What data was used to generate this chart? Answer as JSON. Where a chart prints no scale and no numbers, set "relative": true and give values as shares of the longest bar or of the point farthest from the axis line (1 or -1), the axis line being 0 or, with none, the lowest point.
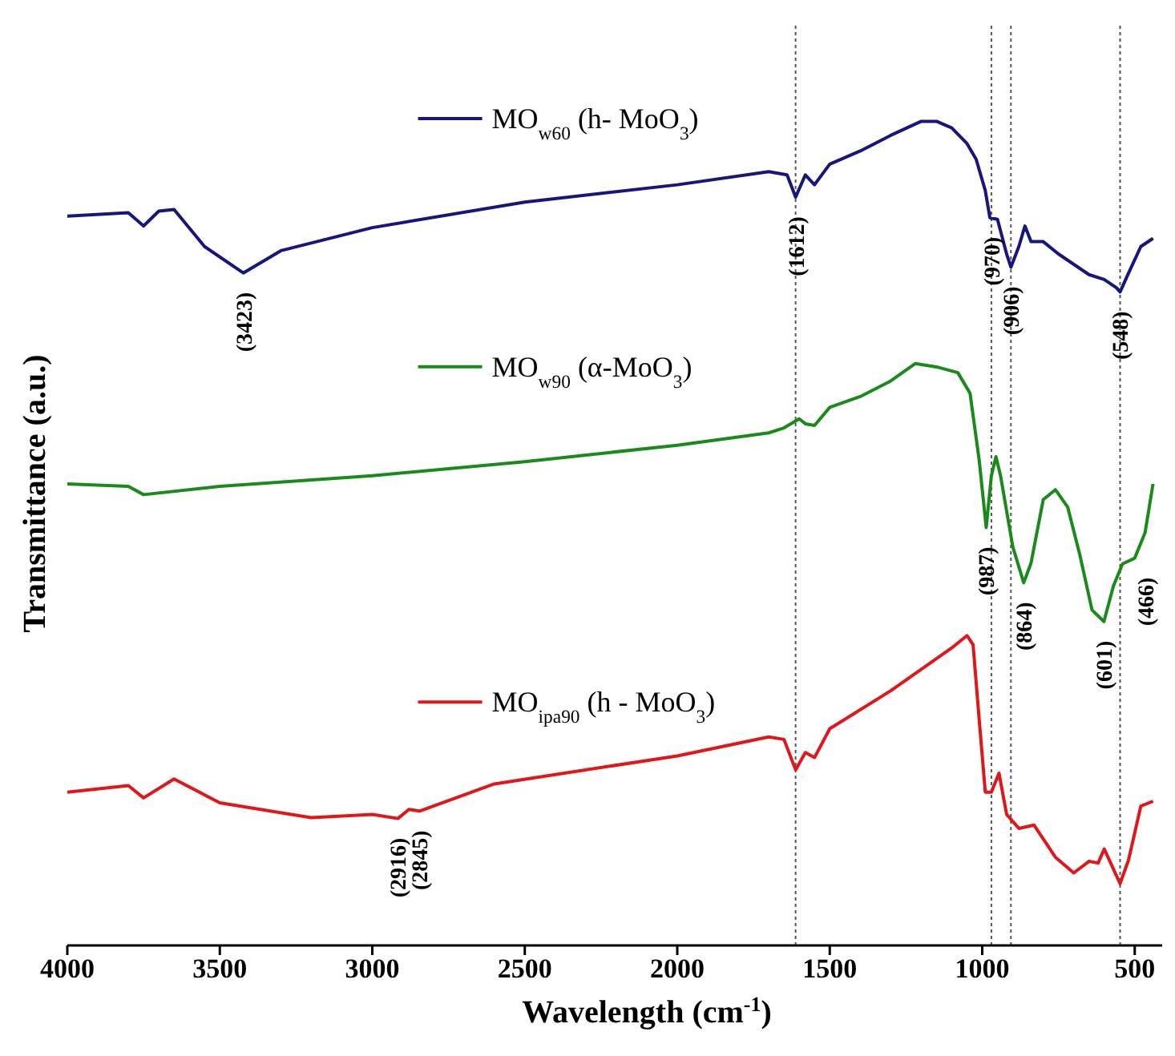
{
  "chart_data": {
    "type": "line",
    "relative": true,
    "xlabel": "Wavelength (cm$^{-1}$)",
    "ylabel": "Transmittance (a.u.)",
    "xlim": [
      4000,
      410
    ],
    "xticks": [
      4000,
      3500,
      3000,
      2500,
      2000,
      1500,
      1000,
      500
    ],
    "legend": "top left",
    "grid": false,
    "line_style": "solid",
    "marker": "none",
    "series": [
      {
        "name": "MO$_{w60}$ (h- MoO$_{3}$)",
        "color": "#16167e",
        "x": [
          4000,
          3800,
          3750,
          3700,
          3650,
          3550,
          3423,
          3300,
          3000,
          2500,
          2000,
          1700,
          1640,
          1612,
          1580,
          1550,
          1500,
          1400,
          1300,
          1200,
          1150,
          1100,
          1050,
          1020,
          990,
          975,
          950,
          920,
          906,
          880,
          860,
          840,
          800,
          750,
          650,
          600,
          560,
          548,
          520,
          480,
          440
        ],
        "values": [
          0.885,
          0.889,
          0.873,
          0.891,
          0.893,
          0.848,
          0.816,
          0.843,
          0.871,
          0.902,
          0.923,
          0.939,
          0.935,
          0.908,
          0.935,
          0.923,
          0.948,
          0.964,
          0.983,
          1.0,
          1.0,
          0.992,
          0.973,
          0.954,
          0.916,
          0.883,
          0.881,
          0.839,
          0.823,
          0.848,
          0.873,
          0.854,
          0.854,
          0.839,
          0.814,
          0.808,
          0.798,
          0.793,
          0.816,
          0.848,
          0.858
        ]
      },
      {
        "name": "MO$_{w90}$ (α-MoO$_{3}$)",
        "color": "#1a8a1a",
        "x": [
          4000,
          3800,
          3750,
          3500,
          3000,
          2500,
          2000,
          1700,
          1650,
          1600,
          1580,
          1550,
          1500,
          1400,
          1300,
          1220,
          1150,
          1080,
          1040,
          1010,
          987,
          970,
          955,
          940,
          900,
          864,
          840,
          800,
          760,
          720,
          680,
          640,
          601,
          570,
          540,
          500,
          466,
          440
        ],
        "values": [
          0.56,
          0.557,
          0.547,
          0.557,
          0.57,
          0.587,
          0.607,
          0.622,
          0.628,
          0.639,
          0.633,
          0.631,
          0.653,
          0.666,
          0.685,
          0.706,
          0.702,
          0.695,
          0.67,
          0.589,
          0.507,
          0.57,
          0.593,
          0.57,
          0.484,
          0.44,
          0.464,
          0.541,
          0.553,
          0.532,
          0.474,
          0.407,
          0.393,
          0.436,
          0.463,
          0.47,
          0.501,
          0.56
        ]
      },
      {
        "name": "MO$_{ipa90}$ (h - MoO$_{3}$)",
        "color": "#e0161b",
        "x": [
          4000,
          3800,
          3750,
          3650,
          3500,
          3200,
          3000,
          2916,
          2880,
          2845,
          2600,
          2000,
          1700,
          1650,
          1612,
          1580,
          1550,
          1500,
          1300,
          1100,
          1050,
          1030,
          1010,
          990,
          970,
          945,
          920,
          880,
          830,
          760,
          700,
          650,
          620,
          600,
          548,
          520,
          480,
          440
        ],
        "values": [
          0.186,
          0.194,
          0.179,
          0.202,
          0.173,
          0.155,
          0.159,
          0.154,
          0.165,
          0.163,
          0.196,
          0.23,
          0.253,
          0.25,
          0.213,
          0.234,
          0.228,
          0.263,
          0.309,
          0.361,
          0.376,
          0.365,
          0.274,
          0.186,
          0.186,
          0.209,
          0.159,
          0.142,
          0.146,
          0.107,
          0.088,
          0.102,
          0.1,
          0.117,
          0.075,
          0.104,
          0.169,
          0.175
        ]
      }
    ],
    "ref_lines": [
      {
        "axis": "x",
        "value": 1612,
        "label": null,
        "color": "#555555",
        "line_style": "dotted"
      },
      {
        "axis": "x",
        "value": 970,
        "label": null,
        "color": "#555555",
        "line_style": "dotted"
      },
      {
        "axis": "x",
        "value": 906,
        "label": null,
        "color": "#555555",
        "line_style": "dotted"
      },
      {
        "axis": "x",
        "value": 548,
        "label": null,
        "color": "#555555",
        "line_style": "dotted"
      }
    ],
    "annotations": [
      {
        "text": "(3423)",
        "x": 3423,
        "y": 0.816
      },
      {
        "text": "(1612)",
        "x": 1612,
        "y": 0.908
      },
      {
        "text": "(970)",
        "x": 970,
        "y": 0.883
      },
      {
        "text": "(906)",
        "x": 906,
        "y": 0.823
      },
      {
        "text": "(548)",
        "x": 548,
        "y": 0.793
      },
      {
        "text": "(987)",
        "x": 987,
        "y": 0.507
      },
      {
        "text": "(864)",
        "x": 864,
        "y": 0.44
      },
      {
        "text": "(601)",
        "x": 601,
        "y": 0.393
      },
      {
        "text": "(466)",
        "x": 466,
        "y": 0.47
      },
      {
        "text": "(2916)",
        "x": 2916,
        "y": 0.154
      },
      {
        "text": "(2845)",
        "x": 2845,
        "y": 0.163
      }
    ]
  }
}
